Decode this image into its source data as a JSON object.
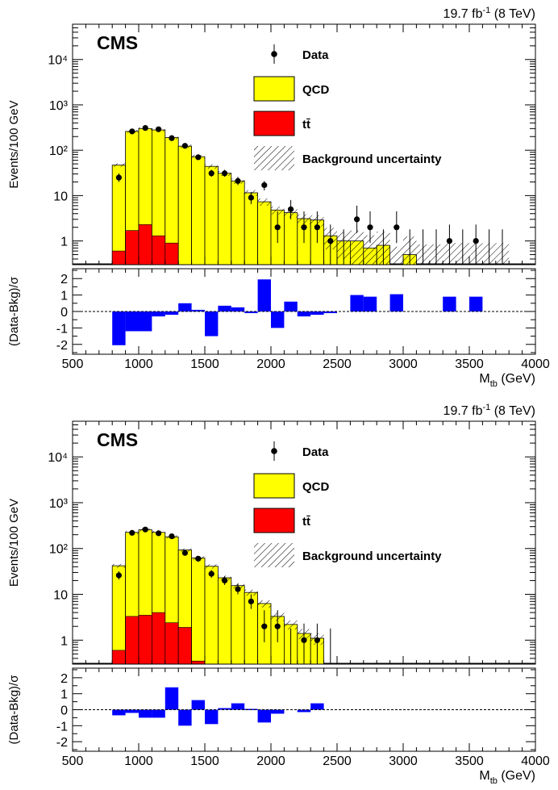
{
  "chart_data": [
    {
      "type": "bar",
      "lumi_label": "19.7 fb",
      "lumi_sup": "-1",
      "lumi_energy": " (8 TeV)",
      "experiment": "CMS",
      "ylabel": "Events/100 GeV",
      "ratio_ylabel": "(Data-Bkg)/σ",
      "xlabel_main": "M",
      "xlabel_sub": "tb",
      "xlabel_unit": " (GeV)",
      "xlim": [
        500,
        4000
      ],
      "ylim": [
        0.3,
        60000
      ],
      "yscale": "log",
      "ratio_ylim": [
        -2.6,
        2.6
      ],
      "x_ticks": [
        "500",
        "1000",
        "1500",
        "2000",
        "2500",
        "3000",
        "3500",
        "4000"
      ],
      "y_ticks": [
        "1",
        "10",
        "10²",
        "10³",
        "10⁴"
      ],
      "ratio_ticks": [
        "2",
        "1",
        "0",
        "-1",
        "-2"
      ],
      "legend": {
        "position": "top-center",
        "entries": [
          {
            "label": "Data",
            "kind": "marker"
          },
          {
            "label": "QCD",
            "kind": "fill",
            "color": "#ffff00"
          },
          {
            "label": "tt̄",
            "kind": "fill",
            "color": "#ff0000"
          },
          {
            "label": "Background uncertainty",
            "kind": "hatch"
          }
        ]
      },
      "bins": {
        "edges": [
          800,
          900,
          1000,
          1100,
          1200,
          1300,
          1400,
          1500,
          1600,
          1700,
          1800,
          1900,
          2000,
          2100,
          2200,
          2300,
          2400,
          2500,
          2600,
          2700,
          2800,
          2900,
          3000,
          3100,
          3200,
          3300,
          3400,
          3500,
          3600,
          3700,
          3800
        ],
        "qcd": [
          40,
          250,
          290,
          270,
          180,
          120,
          70,
          42,
          30,
          20,
          11,
          7,
          4.6,
          4,
          3,
          2.8,
          1.1,
          0.9,
          0.8,
          0.55,
          0.45,
          0.3,
          0.3,
          0.3,
          0.3,
          0.3,
          0.3,
          0.3,
          0.3,
          0.3
        ],
        "ttbar": [
          0.6,
          1.7,
          2.3,
          1.3,
          0.9,
          0.3,
          0.3,
          0.3,
          0.3,
          0.3,
          0.3,
          0.3,
          0.3,
          0.3,
          0.3,
          0.3,
          0.3,
          0.3,
          0.3,
          0.3,
          0.3,
          0.3,
          0.3,
          0.3,
          0.3,
          0.3,
          0.3,
          0.3,
          0.3,
          0.3
        ],
        "total": [
          47,
          260,
          300,
          280,
          190,
          123,
          72,
          44,
          31,
          21,
          11.5,
          7.3,
          4.8,
          4.2,
          3.1,
          2.9,
          1.3,
          1.0,
          1.0,
          0.7,
          0.8,
          0.3,
          0.5,
          0.3,
          0.3,
          0.3,
          0.3,
          0.3,
          0.3,
          0.3
        ],
        "uncertainty": [
          0.1,
          0.08,
          0.08,
          0.08,
          0.08,
          0.09,
          0.1,
          0.11,
          0.12,
          0.13,
          0.15,
          0.18,
          0.2,
          0.22,
          0.25,
          0.28,
          0.5,
          0.6,
          0.7,
          0.9,
          1.0,
          1.5,
          1.5,
          1.8,
          1.8,
          2.0,
          2.0,
          2.0,
          2.0,
          2.0
        ]
      },
      "data_points": [
        {
          "x": 850,
          "y": 25,
          "err": [
            20,
            31
          ]
        },
        {
          "x": 950,
          "y": 260,
          "err": [
            245,
            276
          ]
        },
        {
          "x": 1050,
          "y": 310,
          "err": [
            293,
            328
          ]
        },
        {
          "x": 1150,
          "y": 290,
          "err": [
            273,
            307
          ]
        },
        {
          "x": 1250,
          "y": 185,
          "err": [
            172,
            199
          ]
        },
        {
          "x": 1350,
          "y": 125,
          "err": [
            114,
            136
          ]
        },
        {
          "x": 1450,
          "y": 70,
          "err": [
            62,
            79
          ]
        },
        {
          "x": 1550,
          "y": 31,
          "err": [
            26,
            37
          ]
        },
        {
          "x": 1650,
          "y": 31,
          "err": [
            26,
            37
          ]
        },
        {
          "x": 1750,
          "y": 21,
          "err": [
            17,
            26
          ]
        },
        {
          "x": 1850,
          "y": 9,
          "err": [
            6.5,
            12
          ]
        },
        {
          "x": 1950,
          "y": 17,
          "err": [
            13,
            21
          ]
        },
        {
          "x": 2050,
          "y": 2,
          "err": [
            0.9,
            4.5
          ]
        },
        {
          "x": 2150,
          "y": 5,
          "err": [
            3,
            8
          ]
        },
        {
          "x": 2250,
          "y": 2,
          "err": [
            0.9,
            4.5
          ]
        },
        {
          "x": 2350,
          "y": 2,
          "err": [
            0.9,
            4.5
          ]
        },
        {
          "x": 2450,
          "y": 1,
          "err": [
            0.3,
            2.3
          ]
        },
        {
          "x": 2650,
          "y": 3,
          "err": [
            1.5,
            6
          ]
        },
        {
          "x": 2750,
          "y": 2,
          "err": [
            0.9,
            4.5
          ]
        },
        {
          "x": 2950,
          "y": 2,
          "err": [
            0.9,
            4.5
          ]
        },
        {
          "x": 3350,
          "y": 1,
          "err": [
            0.3,
            2.3
          ]
        },
        {
          "x": 3550,
          "y": 1,
          "err": [
            0.3,
            2.3
          ]
        }
      ],
      "empty_bin_bars": [
        {
          "x": 2550,
          "top": 1.8
        },
        {
          "x": 2850,
          "top": 1.8
        },
        {
          "x": 3050,
          "top": 1.8
        },
        {
          "x": 3150,
          "top": 1.8
        },
        {
          "x": 3250,
          "top": 1.8
        },
        {
          "x": 3450,
          "top": 1.8
        },
        {
          "x": 3650,
          "top": 1.8
        },
        {
          "x": 3750,
          "top": 1.8
        }
      ],
      "ratio": [
        {
          "lo": 800,
          "hi": 900,
          "value": -2.05
        },
        {
          "lo": 900,
          "hi": 1000,
          "value": -1.2
        },
        {
          "lo": 1000,
          "hi": 1100,
          "value": -1.2
        },
        {
          "lo": 1100,
          "hi": 1200,
          "value": -0.3
        },
        {
          "lo": 1200,
          "hi": 1300,
          "value": -0.2
        },
        {
          "lo": 1300,
          "hi": 1400,
          "value": 0.5
        },
        {
          "lo": 1400,
          "hi": 1500,
          "value": 0.1
        },
        {
          "lo": 1500,
          "hi": 1600,
          "value": -1.5
        },
        {
          "lo": 1600,
          "hi": 1700,
          "value": 0.35
        },
        {
          "lo": 1700,
          "hi": 1800,
          "value": 0.25
        },
        {
          "lo": 1800,
          "hi": 1900,
          "value": -0.1
        },
        {
          "lo": 1900,
          "hi": 2000,
          "value": 1.95
        },
        {
          "lo": 2000,
          "hi": 2100,
          "value": -1.0
        },
        {
          "lo": 2100,
          "hi": 2200,
          "value": 0.6
        },
        {
          "lo": 2200,
          "hi": 2300,
          "value": -0.3
        },
        {
          "lo": 2300,
          "hi": 2400,
          "value": -0.2
        },
        {
          "lo": 2400,
          "hi": 2500,
          "value": -0.1
        },
        {
          "lo": 2600,
          "hi": 2700,
          "value": 1.0
        },
        {
          "lo": 2700,
          "hi": 2800,
          "value": 0.9
        },
        {
          "lo": 2900,
          "hi": 3000,
          "value": 1.05
        },
        {
          "lo": 3300,
          "hi": 3400,
          "value": 0.9
        },
        {
          "lo": 3500,
          "hi": 3600,
          "value": 0.9
        }
      ]
    },
    {
      "type": "bar",
      "lumi_label": "19.7 fb",
      "lumi_sup": "-1",
      "lumi_energy": " (8 TeV)",
      "experiment": "CMS",
      "ylabel": "Events/100 GeV",
      "ratio_ylabel": "(Data-Bkg)/σ",
      "xlabel_main": "M",
      "xlabel_sub": "tb",
      "xlabel_unit": " (GeV)",
      "xlim": [
        500,
        4000
      ],
      "ylim": [
        0.3,
        60000
      ],
      "yscale": "log",
      "ratio_ylim": [
        -2.6,
        2.6
      ],
      "x_ticks": [
        "500",
        "1000",
        "1500",
        "2000",
        "2500",
        "3000",
        "3500",
        "4000"
      ],
      "y_ticks": [
        "1",
        "10",
        "10²",
        "10³",
        "10⁴"
      ],
      "ratio_ticks": [
        "2",
        "1",
        "0",
        "-1",
        "-2"
      ],
      "legend": {
        "position": "top-center",
        "entries": [
          {
            "label": "Data",
            "kind": "marker"
          },
          {
            "label": "QCD",
            "kind": "fill",
            "color": "#ffff00"
          },
          {
            "label": "tt̄",
            "kind": "fill",
            "color": "#ff0000"
          },
          {
            "label": "Background uncertainty",
            "kind": "hatch"
          }
        ]
      },
      "bins": {
        "edges": [
          800,
          900,
          1000,
          1100,
          1200,
          1300,
          1400,
          1500,
          1600,
          1700,
          1800,
          1900,
          2000,
          2100,
          2200,
          2300,
          2400
        ],
        "qcd": [
          40,
          220,
          250,
          220,
          170,
          90,
          60,
          40,
          22,
          15,
          11,
          6,
          3,
          2,
          1.3,
          1.0
        ],
        "ttbar": [
          0.6,
          3.3,
          3.5,
          4.0,
          2.4,
          1.9,
          0.35,
          0.3,
          0.3,
          0.3,
          0.3,
          0.3,
          0.3,
          0.3,
          0.3,
          0.3
        ],
        "total": [
          42,
          225,
          256,
          225,
          180,
          93,
          62,
          41,
          23,
          15.5,
          11,
          6.3,
          3.3,
          2.2,
          1.4,
          1.1
        ],
        "uncertainty": [
          0.1,
          0.08,
          0.08,
          0.08,
          0.08,
          0.09,
          0.1,
          0.11,
          0.12,
          0.13,
          0.15,
          0.18,
          0.2,
          0.22,
          0.25,
          0.28
        ]
      },
      "data_points": [
        {
          "x": 850,
          "y": 26,
          "err": [
            21,
            32
          ]
        },
        {
          "x": 950,
          "y": 220,
          "err": [
            205,
            235
          ]
        },
        {
          "x": 1050,
          "y": 260,
          "err": [
            244,
            276
          ]
        },
        {
          "x": 1150,
          "y": 215,
          "err": [
            200,
            230
          ]
        },
        {
          "x": 1250,
          "y": 185,
          "err": [
            172,
            199
          ]
        },
        {
          "x": 1350,
          "y": 80,
          "err": [
            71,
            89
          ]
        },
        {
          "x": 1450,
          "y": 60,
          "err": [
            52,
            68
          ]
        },
        {
          "x": 1550,
          "y": 28,
          "err": [
            23,
            34
          ]
        },
        {
          "x": 1650,
          "y": 20,
          "err": [
            16,
            25
          ]
        },
        {
          "x": 1750,
          "y": 13,
          "err": [
            10,
            17
          ]
        },
        {
          "x": 1850,
          "y": 7,
          "err": [
            4.8,
            10
          ]
        },
        {
          "x": 1950,
          "y": 2,
          "err": [
            0.9,
            4.5
          ]
        },
        {
          "x": 2050,
          "y": 2,
          "err": [
            0.9,
            4.5
          ]
        },
        {
          "x": 2250,
          "y": 1,
          "err": [
            0.3,
            2.3
          ]
        },
        {
          "x": 2350,
          "y": 1,
          "err": [
            0.3,
            2.3
          ]
        }
      ],
      "empty_bin_bars": [
        {
          "x": 2150,
          "top": 1.8
        },
        {
          "x": 2450,
          "top": 1.8
        }
      ],
      "ratio": [
        {
          "lo": 800,
          "hi": 900,
          "value": -0.35
        },
        {
          "lo": 900,
          "hi": 1000,
          "value": -0.2
        },
        {
          "lo": 1000,
          "hi": 1100,
          "value": -0.5
        },
        {
          "lo": 1100,
          "hi": 1200,
          "value": -0.5
        },
        {
          "lo": 1200,
          "hi": 1300,
          "value": 1.4
        },
        {
          "lo": 1300,
          "hi": 1400,
          "value": -1.0
        },
        {
          "lo": 1400,
          "hi": 1500,
          "value": 0.6
        },
        {
          "lo": 1500,
          "hi": 1600,
          "value": -0.9
        },
        {
          "lo": 1600,
          "hi": 1700,
          "value": 0.1
        },
        {
          "lo": 1700,
          "hi": 1800,
          "value": 0.4
        },
        {
          "lo": 1800,
          "hi": 1900,
          "value": 0.05
        },
        {
          "lo": 1900,
          "hi": 2000,
          "value": -0.8
        },
        {
          "lo": 2000,
          "hi": 2100,
          "value": -0.25
        },
        {
          "lo": 2200,
          "hi": 2300,
          "value": -0.15
        },
        {
          "lo": 2300,
          "hi": 2400,
          "value": 0.4
        }
      ]
    }
  ]
}
